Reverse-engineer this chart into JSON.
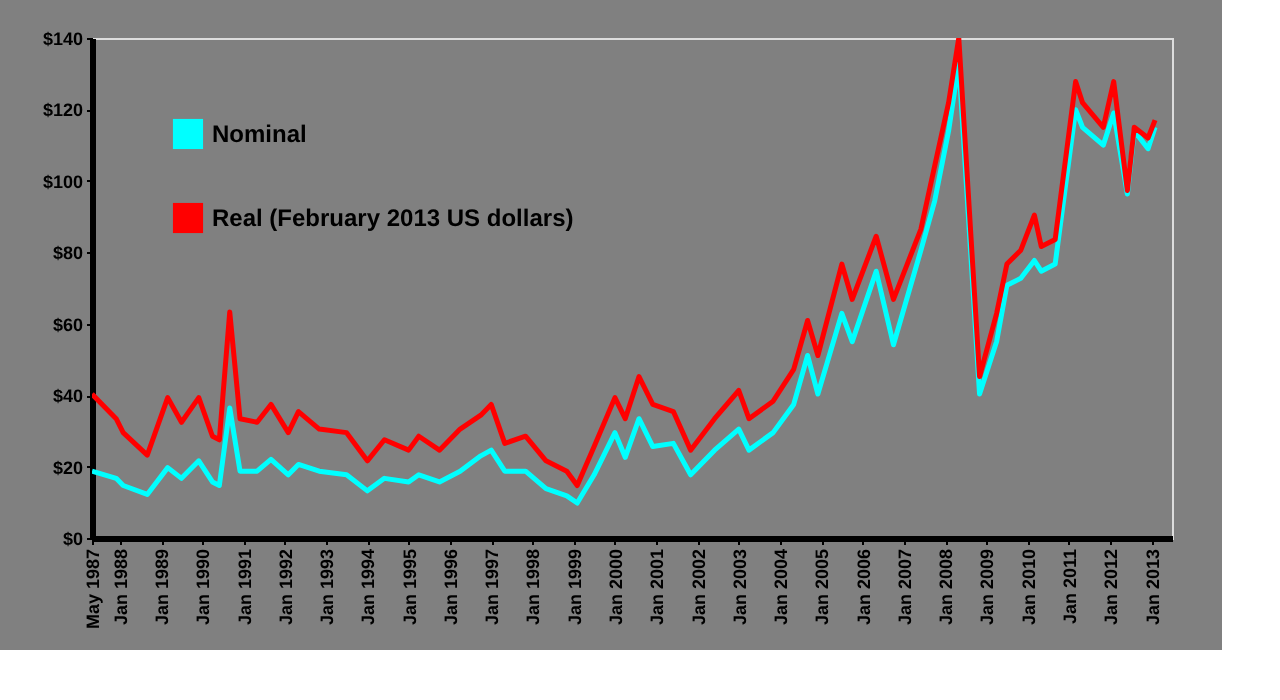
{
  "chart_data": {
    "type": "line",
    "x": [
      "1987-05",
      "1987-12",
      "1988-02",
      "1988-09",
      "1989-03",
      "1989-07",
      "1989-12",
      "1990-04",
      "1990-06",
      "1990-09",
      "1990-12",
      "1991-05",
      "1991-09",
      "1992-02",
      "1992-05",
      "1992-11",
      "1993-07",
      "1994-01",
      "1994-06",
      "1995-01",
      "1995-04",
      "1995-10",
      "1996-04",
      "1996-10",
      "1997-01",
      "1997-05",
      "1997-11",
      "1998-05",
      "1998-11",
      "1999-02",
      "1999-07",
      "2000-01",
      "2000-04",
      "2000-08",
      "2000-12",
      "2001-06",
      "2001-11",
      "2002-06",
      "2003-01",
      "2003-04",
      "2003-11",
      "2004-05",
      "2004-09",
      "2004-12",
      "2005-07",
      "2005-10",
      "2006-05",
      "2006-10",
      "2007-06",
      "2007-10",
      "2008-02",
      "2008-05",
      "2008-11",
      "2009-04",
      "2009-07",
      "2009-11",
      "2010-03",
      "2010-05",
      "2010-09",
      "2011-03",
      "2011-05",
      "2011-11",
      "2012-02",
      "2012-06",
      "2012-08",
      "2012-12",
      "2013-02"
    ],
    "series": [
      {
        "name": "Nominal",
        "color": "#00ffff",
        "values": [
          18.7,
          16.7,
          14.7,
          12.2,
          19.7,
          16.7,
          21.6,
          15.7,
          14.7,
          36.4,
          18.7,
          18.7,
          22,
          17.7,
          20.6,
          18.7,
          17.7,
          13.2,
          16.7,
          15.7,
          17.7,
          15.7,
          18.7,
          23,
          24.6,
          18.7,
          18.7,
          13.8,
          11.8,
          9.8,
          17.7,
          29.5,
          22.6,
          33.4,
          25.6,
          26.5,
          17.7,
          24.6,
          30.5,
          24.6,
          29.5,
          37.4,
          51.1,
          40.3,
          62.9,
          55,
          74.7,
          54.1,
          80.6,
          94.4,
          114,
          133,
          40.3,
          55,
          70.8,
          72.7,
          77.7,
          74.7,
          76.7,
          119.9,
          115,
          110,
          119,
          96.3,
          114,
          109,
          115
        ]
      },
      {
        "name": "Real (February 2013 US dollars)",
        "color": "#ff0000",
        "values": [
          40.3,
          33.4,
          29.5,
          23.2,
          39.3,
          32.4,
          39.3,
          28.5,
          27.5,
          63.3,
          33.4,
          32.4,
          37.4,
          29.5,
          35.4,
          30.5,
          29.5,
          21.6,
          27.5,
          24.6,
          28.5,
          24.6,
          30.5,
          34.4,
          37.4,
          26.5,
          28.5,
          21.6,
          18.7,
          14.7,
          25.6,
          39.3,
          33.4,
          45.2,
          37.4,
          35.4,
          24.6,
          33.4,
          41.3,
          33.4,
          38.3,
          47.2,
          60.9,
          51.1,
          76.7,
          66.8,
          84.5,
          66.8,
          86.5,
          104.2,
          121.9,
          140,
          45.2,
          62.9,
          76.7,
          80.6,
          90.4,
          81.6,
          83.6,
          127.8,
          121.9,
          115,
          127.8,
          97.3,
          115,
          112,
          117
        ]
      }
    ],
    "xlim": [
      "1987-05",
      "2013-07"
    ],
    "xticks": [
      {
        "value": "1987-05",
        "label": "May 1987"
      },
      {
        "value": "1988-01",
        "label": "Jan 1988"
      },
      {
        "value": "1989-01",
        "label": "Jan 1989"
      },
      {
        "value": "1990-01",
        "label": "Jan 1990"
      },
      {
        "value": "1991-01",
        "label": "Jan 1991"
      },
      {
        "value": "1992-01",
        "label": "Jan 1992"
      },
      {
        "value": "1993-01",
        "label": "Jan 1993"
      },
      {
        "value": "1994-01",
        "label": "Jan 1994"
      },
      {
        "value": "1995-01",
        "label": "Jan 1995"
      },
      {
        "value": "1996-01",
        "label": "Jan 1996"
      },
      {
        "value": "1997-01",
        "label": "Jan 1997"
      },
      {
        "value": "1998-01",
        "label": "Jan 1998"
      },
      {
        "value": "1999-01",
        "label": "Jan 1999"
      },
      {
        "value": "2000-01",
        "label": "Jan 2000"
      },
      {
        "value": "2001-01",
        "label": "Jan 2001"
      },
      {
        "value": "2002-01",
        "label": "Jan 2002"
      },
      {
        "value": "2003-01",
        "label": "Jan 2003"
      },
      {
        "value": "2004-01",
        "label": "Jan 2004"
      },
      {
        "value": "2005-01",
        "label": "Jan 2005"
      },
      {
        "value": "2006-01",
        "label": "Jan 2006"
      },
      {
        "value": "2007-01",
        "label": "Jan 2007"
      },
      {
        "value": "2008-01",
        "label": "Jan 2008"
      },
      {
        "value": "2009-01",
        "label": "Jan 2009"
      },
      {
        "value": "2010-01",
        "label": "Jan 2010"
      },
      {
        "value": "2011-01",
        "label": "Jan 2011"
      },
      {
        "value": "2012-01",
        "label": "Jan 2012"
      },
      {
        "value": "2013-01",
        "label": "Jan 2013"
      }
    ],
    "ylim": [
      0,
      140
    ],
    "yticks": [
      {
        "value": 0,
        "label": "$0"
      },
      {
        "value": 20,
        "label": "$20"
      },
      {
        "value": 40,
        "label": "$40"
      },
      {
        "value": 60,
        "label": "$60"
      },
      {
        "value": 80,
        "label": "$80"
      },
      {
        "value": 100,
        "label": "$100"
      },
      {
        "value": 120,
        "label": "$120"
      },
      {
        "value": 140,
        "label": "$140"
      }
    ],
    "grid": false,
    "legend": "top left",
    "line_style": "solid",
    "marker": "none"
  }
}
